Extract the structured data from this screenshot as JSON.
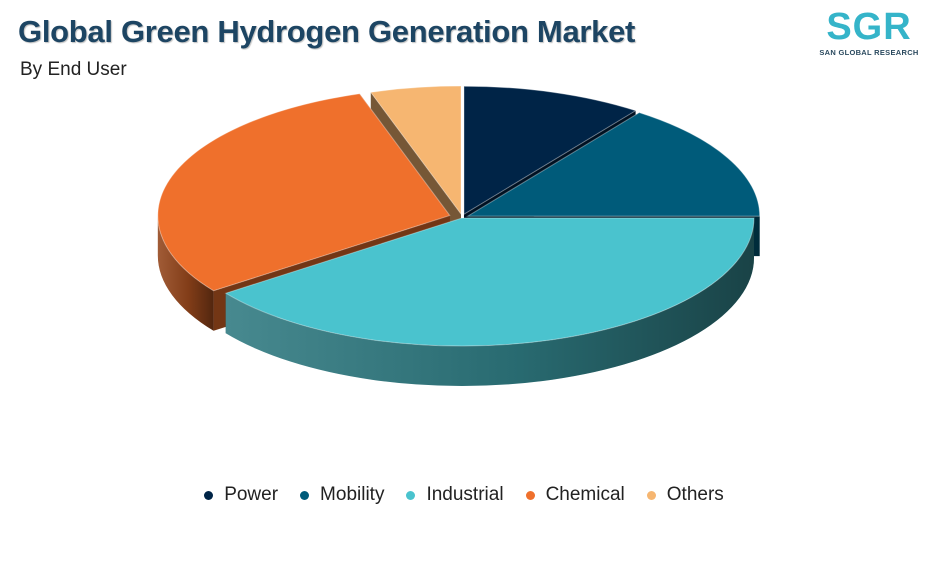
{
  "header": {
    "title": "Global Green Hydrogen Generation Market",
    "subtitle": "By End User"
  },
  "logo": {
    "text": "SGR",
    "tagline": "SAN GLOBAL RESEARCH"
  },
  "chart_data": {
    "type": "pie",
    "style": "3d-exploded",
    "title": "Global Green Hydrogen Generation Market",
    "subtitle": "By End User",
    "legend_position": "bottom",
    "categories": [
      "Power",
      "Mobility",
      "Industrial",
      "Chemical",
      "Others"
    ],
    "values": [
      10,
      15,
      40,
      30,
      5
    ],
    "colors": [
      "#002447",
      "#005b7a",
      "#4ac3ce",
      "#ef702c",
      "#f6b671"
    ]
  }
}
